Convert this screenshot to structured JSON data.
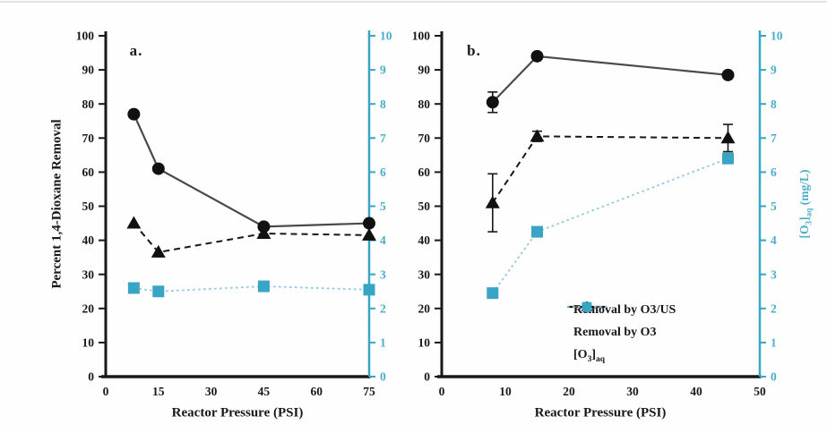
{
  "colors": {
    "black": "#181818",
    "series_line_gray": "#4a4a4a",
    "cyan": "#39A5C4",
    "cyan_light": "#90C9DB",
    "cyan_text": "#4BAEC9",
    "top_rule_gray": "#e3e3e3"
  },
  "legend": {
    "position": "inside panel b, lower right",
    "items": [
      {
        "label": "Removal by O3/US",
        "marker": "circle",
        "line": "solid",
        "line_color": "#4a4a4a",
        "marker_color": "#111111"
      },
      {
        "label": "Removal by O3",
        "marker": "triangle",
        "line": "dashed",
        "line_color": "#181818",
        "marker_color": "#111111"
      },
      {
        "label": "[O3]aq",
        "parts": {
          "p1": "[O",
          "s1": "3",
          "p2": "]",
          "s2": "aq"
        },
        "marker": "square",
        "line": "dotted",
        "line_color": "#90C9DB",
        "marker_color": "#39A5C4"
      }
    ]
  },
  "chart_data": [
    {
      "id": "a",
      "type": "line",
      "panel_label": "a.",
      "xlabel": "Reactor Pressure (PSI)",
      "ylabel_left": "Percent 1,4-Dioxane Removal",
      "xlim": [
        0,
        75
      ],
      "xticks": [
        0,
        15,
        30,
        45,
        60,
        75
      ],
      "ylim_left": [
        0,
        100
      ],
      "yticks_left": [
        0,
        10,
        20,
        30,
        40,
        50,
        60,
        70,
        80,
        90,
        100
      ],
      "ylim_right": [
        0,
        10
      ],
      "yticks_right": [
        0,
        1,
        2,
        3,
        4,
        5,
        6,
        7,
        8,
        9,
        10
      ],
      "grid": false,
      "series": [
        {
          "name": "Removal by O3/US",
          "axis": "left",
          "marker": "circle",
          "line": "solid",
          "line_color": "#4a4a4a",
          "marker_color": "#111111",
          "x": [
            8,
            15,
            45,
            75
          ],
          "y": [
            77,
            61,
            44,
            45
          ]
        },
        {
          "name": "Removal by O3",
          "axis": "left",
          "marker": "triangle",
          "line": "dashed",
          "line_color": "#181818",
          "marker_color": "#111111",
          "x": [
            8,
            15,
            45,
            75
          ],
          "y": [
            45,
            36.5,
            42,
            41.5
          ]
        },
        {
          "name": "[O3]aq",
          "axis": "right",
          "marker": "square",
          "line": "dotted",
          "line_color": "#90C9DB",
          "marker_color": "#39A5C4",
          "x": [
            8,
            15,
            45,
            75
          ],
          "y": [
            2.6,
            2.5,
            2.65,
            2.55
          ]
        }
      ]
    },
    {
      "id": "b",
      "type": "line",
      "panel_label": "b.",
      "xlabel": "Reactor Pressure (PSI)",
      "ylabel_right": "[O3]aq (mg/L)",
      "ylabel_right_parts": {
        "p1": "[O",
        "s1": "3",
        "p2": "]",
        "s2": "aq",
        "p3": " (mg/L)"
      },
      "xlim": [
        0,
        50
      ],
      "xticks": [
        0,
        10,
        20,
        30,
        40,
        50
      ],
      "ylim_left": [
        0,
        100
      ],
      "yticks_left": [
        0,
        10,
        20,
        30,
        40,
        50,
        60,
        70,
        80,
        90,
        100
      ],
      "ylim_right": [
        0,
        10
      ],
      "yticks_right": [
        0,
        1,
        2,
        3,
        4,
        5,
        6,
        7,
        8,
        9,
        10
      ],
      "grid": false,
      "series": [
        {
          "name": "Removal by O3/US",
          "axis": "left",
          "marker": "circle",
          "line": "solid",
          "line_color": "#4a4a4a",
          "marker_color": "#111111",
          "x": [
            8,
            15,
            45
          ],
          "y": [
            80.5,
            94,
            88.5
          ],
          "yerr": [
            3,
            1,
            0
          ]
        },
        {
          "name": "Removal by O3",
          "axis": "left",
          "marker": "triangle",
          "line": "dashed",
          "line_color": "#181818",
          "marker_color": "#111111",
          "x": [
            8,
            15,
            45
          ],
          "y": [
            51,
            70.5,
            70
          ],
          "yerr": [
            8.5,
            1.5,
            4
          ]
        },
        {
          "name": "[O3]aq",
          "axis": "right",
          "marker": "square",
          "line": "dotted",
          "line_color": "#90C9DB",
          "marker_color": "#39A5C4",
          "x": [
            8,
            15,
            45
          ],
          "y": [
            2.45,
            4.25,
            6.4
          ]
        }
      ]
    }
  ]
}
